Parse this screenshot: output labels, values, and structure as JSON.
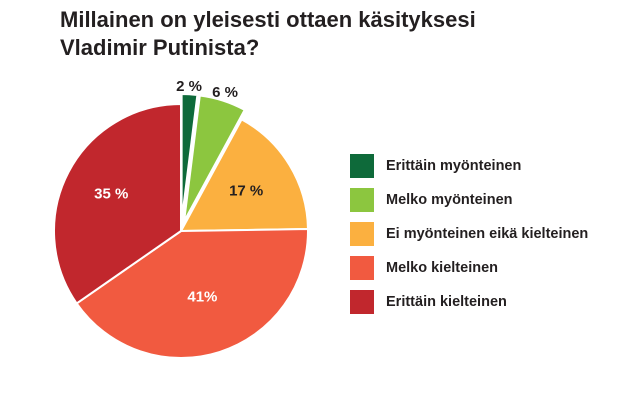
{
  "chart_data": {
    "type": "pie",
    "title_lines": [
      "Millainen on yleisesti ottaen käsityksesi",
      "Vladimir Putinista?"
    ],
    "legend_placement": "right",
    "slices": [
      {
        "name": "Erittäin myönteinen",
        "value": 2,
        "label": "2 %",
        "color": "#0e6a3a",
        "exploded": true,
        "label_color": "#231f20"
      },
      {
        "name": "Melko myönteinen",
        "value": 6,
        "label": "6 %",
        "color": "#8cc63f",
        "exploded": true,
        "label_color": "#231f20"
      },
      {
        "name": "Ei myönteinen eikä kielteinen",
        "value": 17,
        "label": "17 %",
        "color": "#fbb040",
        "exploded": false,
        "label_color": "#231f20"
      },
      {
        "name": "Melko kielteinen",
        "value": 41,
        "label": "41%",
        "color": "#f15a40",
        "exploded": false,
        "label_color": "#ffffff"
      },
      {
        "name": "Erittäin kielteinen",
        "value": 35,
        "label": "35 %",
        "color": "#c1272d",
        "exploded": false,
        "label_color": "#ffffff"
      }
    ]
  }
}
